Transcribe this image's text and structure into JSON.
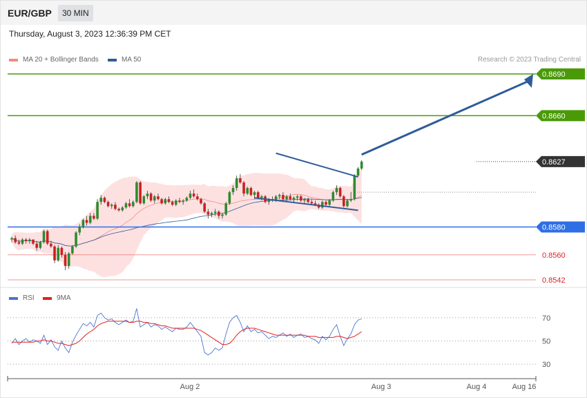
{
  "header": {
    "symbol": "EUR/GBP",
    "interval": "30 MIN"
  },
  "timestamp": "Thursday, August 3, 2023 12:36:39 PM CET",
  "legend_price": [
    {
      "label": "MA 20 + Bollinger Bands",
      "color": "#f28b82"
    },
    {
      "label": "MA 50",
      "color": "#2e5c99"
    }
  ],
  "legend_rsi": [
    {
      "label": "RSI",
      "color": "#4a73d1"
    },
    {
      "label": "9MA",
      "color": "#e02020"
    }
  ],
  "credit": "Research © 2023 Trading Central",
  "chart_data": [
    {
      "type": "candlestick",
      "title": "EUR/GBP 30 MIN",
      "ylim": [
        0.8535,
        0.8695
      ],
      "x_ticks": [
        "Aug 2",
        "Aug 3",
        "Aug 4",
        "Aug 16"
      ],
      "current_price": {
        "label": "0.8627",
        "value": 0.8627,
        "color": "#333333"
      },
      "levels": [
        {
          "label": "0.8690",
          "value": 0.869,
          "kind": "resistance",
          "color": "#4a9a08",
          "badge": true
        },
        {
          "label": "0.8660",
          "value": 0.866,
          "kind": "resistance",
          "color": "#4a9a08",
          "badge": true
        },
        {
          "label": "0.8580",
          "value": 0.858,
          "kind": "pivot",
          "color": "#2f6fe6",
          "badge": true
        },
        {
          "label": "0.8560",
          "value": 0.856,
          "kind": "support",
          "color": "#e02020",
          "badge": false
        },
        {
          "label": "0.8542",
          "value": 0.8542,
          "kind": "support",
          "color": "#e02020",
          "badge": false
        }
      ],
      "colors": {
        "up": "#2e8b2e",
        "down": "#cc2020",
        "bollinger_fill": "#fde1e1",
        "ma20": "#f28b82",
        "ma50": "#2e5c99",
        "pattern": "#2e5c99"
      },
      "candles": [
        [
          0.8571,
          0.8573,
          0.8569,
          0.8572
        ],
        [
          0.8572,
          0.8574,
          0.8568,
          0.8569
        ],
        [
          0.8569,
          0.8571,
          0.8567,
          0.8568
        ],
        [
          0.8568,
          0.8572,
          0.8567,
          0.8571
        ],
        [
          0.8571,
          0.8572,
          0.8568,
          0.857
        ],
        [
          0.857,
          0.8572,
          0.8568,
          0.8571
        ],
        [
          0.8571,
          0.8571,
          0.8567,
          0.8568
        ],
        [
          0.8568,
          0.857,
          0.8563,
          0.8565
        ],
        [
          0.8565,
          0.857,
          0.8564,
          0.8569
        ],
        [
          0.8569,
          0.8578,
          0.8568,
          0.8577
        ],
        [
          0.8577,
          0.8578,
          0.8567,
          0.8568
        ],
        [
          0.8568,
          0.857,
          0.8565,
          0.8566
        ],
        [
          0.8566,
          0.8567,
          0.8554,
          0.8556
        ],
        [
          0.8556,
          0.8567,
          0.8555,
          0.8565
        ],
        [
          0.8565,
          0.8566,
          0.8558,
          0.856
        ],
        [
          0.856,
          0.8562,
          0.8549,
          0.8552
        ],
        [
          0.8552,
          0.8562,
          0.855,
          0.8561
        ],
        [
          0.8561,
          0.8567,
          0.856,
          0.8566
        ],
        [
          0.8566,
          0.8577,
          0.8565,
          0.8576
        ],
        [
          0.8576,
          0.8582,
          0.8574,
          0.858
        ],
        [
          0.858,
          0.8586,
          0.8579,
          0.8585
        ],
        [
          0.8585,
          0.8588,
          0.8581,
          0.8583
        ],
        [
          0.8583,
          0.859,
          0.8582,
          0.8588
        ],
        [
          0.8588,
          0.859,
          0.8585,
          0.8586
        ],
        [
          0.8586,
          0.86,
          0.8585,
          0.8598
        ],
        [
          0.8598,
          0.8603,
          0.8596,
          0.8601
        ],
        [
          0.8601,
          0.8602,
          0.8597,
          0.8598
        ],
        [
          0.8598,
          0.8599,
          0.8594,
          0.8595
        ],
        [
          0.8595,
          0.8597,
          0.8593,
          0.8596
        ],
        [
          0.8596,
          0.8598,
          0.8592,
          0.8593
        ],
        [
          0.8593,
          0.8594,
          0.8591,
          0.8592
        ],
        [
          0.8592,
          0.8595,
          0.8591,
          0.8594
        ],
        [
          0.8594,
          0.8598,
          0.8593,
          0.8597
        ],
        [
          0.8597,
          0.86,
          0.8594,
          0.8595
        ],
        [
          0.8595,
          0.8599,
          0.8594,
          0.8598
        ],
        [
          0.8598,
          0.8613,
          0.8597,
          0.8612
        ],
        [
          0.8612,
          0.8613,
          0.8596,
          0.8597
        ],
        [
          0.8597,
          0.8603,
          0.8596,
          0.8602
        ],
        [
          0.8602,
          0.8606,
          0.86,
          0.8604
        ],
        [
          0.8604,
          0.8605,
          0.8598,
          0.8599
        ],
        [
          0.8599,
          0.8603,
          0.8597,
          0.8602
        ],
        [
          0.8602,
          0.8604,
          0.8599,
          0.86
        ],
        [
          0.86,
          0.8601,
          0.8596,
          0.8597
        ],
        [
          0.8597,
          0.8601,
          0.8596,
          0.86
        ],
        [
          0.86,
          0.8602,
          0.8597,
          0.8598
        ],
        [
          0.8598,
          0.8599,
          0.8595,
          0.8596
        ],
        [
          0.8596,
          0.86,
          0.8595,
          0.8599
        ],
        [
          0.8599,
          0.8601,
          0.8597,
          0.8598
        ],
        [
          0.8598,
          0.86,
          0.8596,
          0.8599
        ],
        [
          0.8599,
          0.8602,
          0.8598,
          0.8601
        ],
        [
          0.8601,
          0.8606,
          0.86,
          0.8604
        ],
        [
          0.8604,
          0.8607,
          0.8601,
          0.8602
        ],
        [
          0.8602,
          0.8604,
          0.8599,
          0.86
        ],
        [
          0.86,
          0.8601,
          0.8596,
          0.8597
        ],
        [
          0.8597,
          0.8598,
          0.859,
          0.8591
        ],
        [
          0.8591,
          0.8593,
          0.8586,
          0.8589
        ],
        [
          0.8589,
          0.8591,
          0.8587,
          0.859
        ],
        [
          0.859,
          0.8593,
          0.8588,
          0.8591
        ],
        [
          0.8591,
          0.8592,
          0.8586,
          0.8588
        ],
        [
          0.8588,
          0.859,
          0.8586,
          0.8589
        ],
        [
          0.8589,
          0.8598,
          0.8588,
          0.8597
        ],
        [
          0.8597,
          0.8606,
          0.8596,
          0.8605
        ],
        [
          0.8605,
          0.861,
          0.8603,
          0.8608
        ],
        [
          0.8608,
          0.8617,
          0.8606,
          0.8615
        ],
        [
          0.8615,
          0.8618,
          0.8611,
          0.8612
        ],
        [
          0.8612,
          0.8613,
          0.8602,
          0.8604
        ],
        [
          0.8604,
          0.8609,
          0.8603,
          0.8608
        ],
        [
          0.8608,
          0.8609,
          0.8602,
          0.8603
        ],
        [
          0.8603,
          0.8606,
          0.86,
          0.8605
        ],
        [
          0.8605,
          0.8606,
          0.86,
          0.8601
        ],
        [
          0.8601,
          0.8603,
          0.8599,
          0.8602
        ],
        [
          0.8602,
          0.8603,
          0.8597,
          0.8598
        ],
        [
          0.8598,
          0.8601,
          0.8596,
          0.86
        ],
        [
          0.86,
          0.8602,
          0.8598,
          0.8599
        ],
        [
          0.8599,
          0.8603,
          0.8598,
          0.8602
        ],
        [
          0.8602,
          0.8604,
          0.86,
          0.8603
        ],
        [
          0.8603,
          0.8605,
          0.8598,
          0.86
        ],
        [
          0.86,
          0.8603,
          0.8598,
          0.8602
        ],
        [
          0.8602,
          0.8604,
          0.8599,
          0.86
        ],
        [
          0.86,
          0.8602,
          0.8598,
          0.8601
        ],
        [
          0.8601,
          0.8603,
          0.8599,
          0.8602
        ],
        [
          0.8602,
          0.8603,
          0.8598,
          0.8599
        ],
        [
          0.8599,
          0.8601,
          0.8597,
          0.86
        ],
        [
          0.86,
          0.8601,
          0.8597,
          0.8598
        ],
        [
          0.8598,
          0.86,
          0.8596,
          0.8597
        ],
        [
          0.8597,
          0.8599,
          0.8595,
          0.8596
        ],
        [
          0.8596,
          0.8597,
          0.8593,
          0.8594
        ],
        [
          0.8594,
          0.8599,
          0.8593,
          0.8598
        ],
        [
          0.8598,
          0.8599,
          0.8595,
          0.8596
        ],
        [
          0.8596,
          0.86,
          0.8595,
          0.8599
        ],
        [
          0.8599,
          0.8606,
          0.8598,
          0.8605
        ],
        [
          0.8605,
          0.861,
          0.8603,
          0.8608
        ],
        [
          0.8608,
          0.8609,
          0.8601,
          0.8602
        ],
        [
          0.8602,
          0.8603,
          0.8594,
          0.8595
        ],
        [
          0.8595,
          0.86,
          0.8594,
          0.8599
        ],
        [
          0.8599,
          0.8605,
          0.8598,
          0.86
        ],
        [
          0.86,
          0.8618,
          0.8599,
          0.8617
        ],
        [
          0.8617,
          0.8623,
          0.8616,
          0.8622
        ],
        [
          0.8622,
          0.8628,
          0.8621,
          0.8627
        ]
      ]
    },
    {
      "type": "line",
      "title": "RSI",
      "ylim": [
        20,
        80
      ],
      "y_ticks": [
        "70",
        "50",
        "30"
      ],
      "reference_lines": [
        70,
        50,
        30
      ],
      "series": [
        {
          "name": "RSI",
          "color": "#4a73d1",
          "values": [
            48,
            52,
            47,
            50,
            52,
            49,
            51,
            50,
            48,
            55,
            47,
            51,
            45,
            42,
            50,
            44,
            40,
            49,
            55,
            60,
            65,
            63,
            66,
            62,
            72,
            74,
            70,
            68,
            69,
            66,
            64,
            66,
            68,
            66,
            67,
            78,
            62,
            64,
            66,
            62,
            64,
            63,
            60,
            62,
            60,
            58,
            61,
            60,
            60,
            62,
            66,
            62,
            58,
            54,
            40,
            38,
            40,
            44,
            42,
            44,
            56,
            66,
            70,
            72,
            66,
            58,
            63,
            58,
            60,
            57,
            58,
            55,
            52,
            54,
            53,
            55,
            57,
            54,
            56,
            53,
            55,
            56,
            53,
            54,
            52,
            51,
            48,
            54,
            51,
            54,
            60,
            64,
            54,
            46,
            52,
            56,
            64,
            68,
            69
          ]
        },
        {
          "name": "9MA",
          "color": "#e02020",
          "values": [
            49,
            49,
            49,
            49,
            49,
            49,
            49,
            50,
            50,
            51,
            50,
            50,
            49,
            48,
            48,
            47,
            46,
            47,
            48,
            50,
            53,
            56,
            58,
            60,
            63,
            65,
            66,
            67,
            67,
            67,
            67,
            67,
            67,
            66,
            66,
            67,
            67,
            66,
            66,
            65,
            65,
            64,
            63,
            63,
            62,
            61,
            61,
            61,
            61,
            61,
            61,
            61,
            60,
            59,
            57,
            55,
            53,
            51,
            49,
            47,
            47,
            48,
            51,
            55,
            58,
            60,
            61,
            61,
            61,
            60,
            59,
            58,
            57,
            56,
            55,
            55,
            55,
            55,
            55,
            55,
            55,
            55,
            55,
            54,
            54,
            54,
            53,
            53,
            53,
            53,
            53,
            54,
            54,
            53,
            52,
            53,
            54,
            56,
            58
          ]
        }
      ]
    }
  ]
}
